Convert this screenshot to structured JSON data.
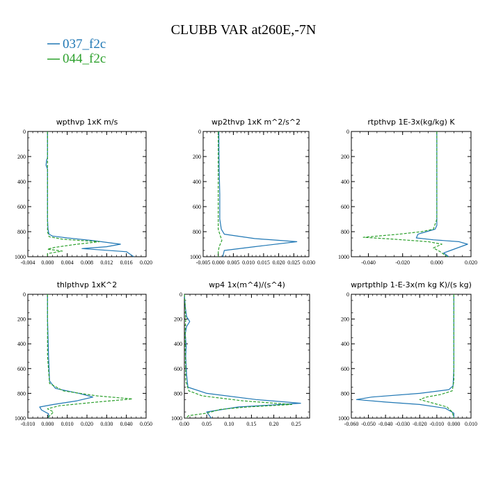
{
  "figure": {
    "title": "CLUBB VAR at260E,-7N",
    "legend": [
      {
        "label": "037_f2c",
        "color": "#1f77b4",
        "dash": "solid"
      },
      {
        "label": "044_f2c",
        "color": "#2ca02c",
        "dash": "dashed"
      }
    ]
  },
  "chart_data": [
    {
      "type": "line",
      "title": "wpthvp  1xK m/s",
      "xlim": [
        -0.004,
        0.02
      ],
      "ylim": [
        1000,
        0
      ],
      "xticks": [
        "-0.004",
        "0.000",
        "0.004",
        "0.008",
        "0.012",
        "0.016",
        "0.020"
      ],
      "xtick_values": [
        -0.004,
        0.0,
        0.004,
        0.008,
        0.012,
        0.016,
        0.02
      ],
      "yticks": [
        "0",
        "200",
        "400",
        "600",
        "800",
        "1000"
      ],
      "series": [
        {
          "name": "037_f2c",
          "color": "#1f77b4",
          "dash": "solid",
          "x": [
            0.0,
            0.0,
            0.0,
            -0.0002,
            -0.0003,
            0.0,
            0.0,
            0.0,
            0.0001,
            0.0003,
            0.001,
            0.004,
            0.009,
            0.0148,
            0.012,
            0.007,
            0.016,
            0.0175
          ],
          "y": [
            0,
            100,
            210,
            230,
            270,
            300,
            500,
            700,
            780,
            820,
            835,
            850,
            870,
            900,
            920,
            935,
            960,
            1000
          ]
        },
        {
          "name": "044_f2c",
          "color": "#2ca02c",
          "dash": "dashed",
          "x": [
            0.0,
            0.0,
            0.0,
            0.0,
            0.0,
            0.0,
            0.0,
            0.0003,
            0.003,
            0.0065,
            0.0105,
            0.006,
            0.0015,
            0.0,
            0.003,
            0.0,
            0.0
          ],
          "y": [
            0,
            100,
            200,
            300,
            500,
            700,
            800,
            840,
            860,
            870,
            880,
            900,
            925,
            940,
            955,
            975,
            1000
          ]
        }
      ]
    },
    {
      "type": "line",
      "title": "wp2thvp  1xK m^2/s^2",
      "xlim": [
        -0.005,
        0.03
      ],
      "ylim": [
        1000,
        0
      ],
      "xticks": [
        "-0.005",
        "0.000",
        "0.005",
        "0.010",
        "0.015",
        "0.020",
        "0.025",
        "0.030"
      ],
      "xtick_values": [
        -0.005,
        0.0,
        0.005,
        0.01,
        0.015,
        0.02,
        0.025,
        0.03
      ],
      "yticks": [
        "0",
        "200",
        "400",
        "600",
        "800",
        "1000"
      ],
      "series": [
        {
          "name": "037_f2c",
          "color": "#1f77b4",
          "dash": "solid",
          "x": [
            0.0002,
            0.0002,
            0.0003,
            0.0005,
            0.0005,
            0.001,
            0.002,
            0.012,
            0.026,
            0.012,
            0.002,
            0.0015
          ],
          "y": [
            0,
            100,
            300,
            500,
            700,
            780,
            820,
            855,
            880,
            920,
            950,
            1000
          ]
        },
        {
          "name": "044_f2c",
          "color": "#2ca02c",
          "dash": "dashed",
          "x": [
            0.0,
            0.0,
            0.0,
            0.0,
            0.0,
            0.0005,
            0.0012,
            0.0003,
            0.0,
            0.0
          ],
          "y": [
            0,
            200,
            400,
            600,
            780,
            820,
            870,
            920,
            960,
            1000
          ]
        }
      ]
    },
    {
      "type": "line",
      "title": "rtpthvp  1E-3x(kg/kg) K",
      "xlim": [
        -0.05,
        0.02
      ],
      "ylim": [
        1000,
        0
      ],
      "xticks": [
        "-0.040",
        "-0.020",
        "0.000",
        "0.020"
      ],
      "xtick_values": [
        -0.04,
        -0.02,
        0.0,
        0.02
      ],
      "yticks": [
        "0",
        "200",
        "400",
        "600",
        "800",
        "1000"
      ],
      "series": [
        {
          "name": "037_f2c",
          "color": "#1f77b4",
          "dash": "solid",
          "x": [
            0.0,
            0.0,
            0.0,
            0.0,
            -0.001,
            -0.006,
            -0.011,
            -0.012,
            -0.002,
            0.013,
            0.018,
            0.008,
            0.004,
            0.007
          ],
          "y": [
            0,
            200,
            500,
            750,
            780,
            800,
            820,
            850,
            865,
            880,
            900,
            950,
            970,
            1000
          ]
        },
        {
          "name": "044_f2c",
          "color": "#2ca02c",
          "dash": "dashed",
          "x": [
            0.0,
            0.0,
            0.0,
            -0.002,
            -0.009,
            -0.022,
            -0.043,
            -0.025,
            -0.005,
            0.003,
            -0.002,
            0.002,
            0.006
          ],
          "y": [
            0,
            200,
            700,
            780,
            800,
            820,
            845,
            860,
            880,
            900,
            930,
            960,
            1000
          ]
        }
      ]
    },
    {
      "type": "line",
      "title": "thlpthvp  1xK^2",
      "xlim": [
        -0.01,
        0.05
      ],
      "ylim": [
        1000,
        0
      ],
      "xticks": [
        "-0.010",
        "0.000",
        "0.010",
        "0.020",
        "0.030",
        "0.040",
        "0.050"
      ],
      "xtick_values": [
        -0.01,
        0.0,
        0.01,
        0.02,
        0.03,
        0.04,
        0.05
      ],
      "yticks": [
        "0",
        "200",
        "400",
        "600",
        "800",
        "1000"
      ],
      "series": [
        {
          "name": "037_f2c",
          "color": "#1f77b4",
          "dash": "solid",
          "x": [
            0.0,
            0.0,
            0.0005,
            0.001,
            0.004,
            0.016,
            0.023,
            0.015,
            0.003,
            -0.004,
            -0.003,
            0.0005,
            0.0005
          ],
          "y": [
            0,
            200,
            500,
            700,
            760,
            800,
            830,
            860,
            890,
            910,
            935,
            965,
            1000
          ]
        },
        {
          "name": "044_f2c",
          "color": "#2ca02c",
          "dash": "dashed",
          "x": [
            0.0,
            0.0,
            0.0,
            0.001,
            0.008,
            0.025,
            0.043,
            0.025,
            0.006,
            0.0,
            0.003,
            0.0
          ],
          "y": [
            0,
            200,
            500,
            720,
            780,
            820,
            845,
            870,
            900,
            925,
            950,
            1000
          ]
        }
      ]
    },
    {
      "type": "line",
      "title": "wp4  1x(m^4)/(s^4)",
      "xlim": [
        0.0,
        0.28
      ],
      "ylim": [
        1000,
        0
      ],
      "xticks": [
        "0.00",
        "0.05",
        "0.10",
        "0.15",
        "0.20",
        "0.25"
      ],
      "xtick_values": [
        0.0,
        0.05,
        0.1,
        0.15,
        0.2,
        0.25
      ],
      "yticks": [
        "0",
        "200",
        "400",
        "600",
        "800",
        "1000"
      ],
      "series": [
        {
          "name": "037_f2c",
          "color": "#1f77b4",
          "dash": "solid",
          "x": [
            0.0,
            0.002,
            0.005,
            0.012,
            0.005,
            0.002,
            0.004,
            0.003,
            0.005,
            0.008,
            0.05,
            0.16,
            0.26,
            0.12,
            0.05,
            0.06
          ],
          "y": [
            0,
            100,
            180,
            220,
            260,
            320,
            420,
            500,
            650,
            750,
            800,
            850,
            880,
            910,
            950,
            1000
          ]
        },
        {
          "name": "044_f2c",
          "color": "#2ca02c",
          "dash": "dashed",
          "x": [
            0.0,
            0.002,
            0.003,
            0.002,
            0.002,
            0.003,
            0.003,
            0.01,
            0.04,
            0.13,
            0.24,
            0.14,
            0.08,
            0.05,
            0.01,
            0.003
          ],
          "y": [
            0,
            100,
            200,
            300,
            450,
            600,
            700,
            780,
            820,
            860,
            890,
            910,
            930,
            960,
            980,
            1000
          ]
        }
      ]
    },
    {
      "type": "line",
      "title": "wprtpthlp  1-E-3x(m kg K)/(s kg)",
      "xlim": [
        -0.06,
        0.01
      ],
      "ylim": [
        1000,
        0
      ],
      "xticks": [
        "-0.060",
        "-0.050",
        "-0.040",
        "-0.030",
        "-0.020",
        "-0.010",
        "0.000",
        "0.010"
      ],
      "xtick_values": [
        -0.06,
        -0.05,
        -0.04,
        -0.03,
        -0.02,
        -0.01,
        0.0,
        0.01
      ],
      "yticks": [
        "0",
        "200",
        "400",
        "600",
        "800",
        "1000"
      ],
      "series": [
        {
          "name": "037_f2c",
          "color": "#1f77b4",
          "dash": "solid",
          "x": [
            0.0,
            0.0,
            0.0,
            -0.0005,
            -0.003,
            -0.02,
            -0.048,
            -0.057,
            -0.04,
            -0.02,
            -0.005,
            0.0,
            0.0
          ],
          "y": [
            0,
            200,
            600,
            740,
            770,
            800,
            830,
            850,
            870,
            890,
            920,
            960,
            1000
          ]
        },
        {
          "name": "044_f2c",
          "color": "#2ca02c",
          "dash": "dashed",
          "x": [
            0.0,
            0.0,
            0.0,
            -0.001,
            -0.008,
            -0.016,
            -0.02,
            -0.012,
            -0.004,
            -0.001,
            0.0
          ],
          "y": [
            0,
            200,
            700,
            780,
            810,
            830,
            850,
            880,
            910,
            950,
            1000
          ]
        }
      ]
    }
  ]
}
